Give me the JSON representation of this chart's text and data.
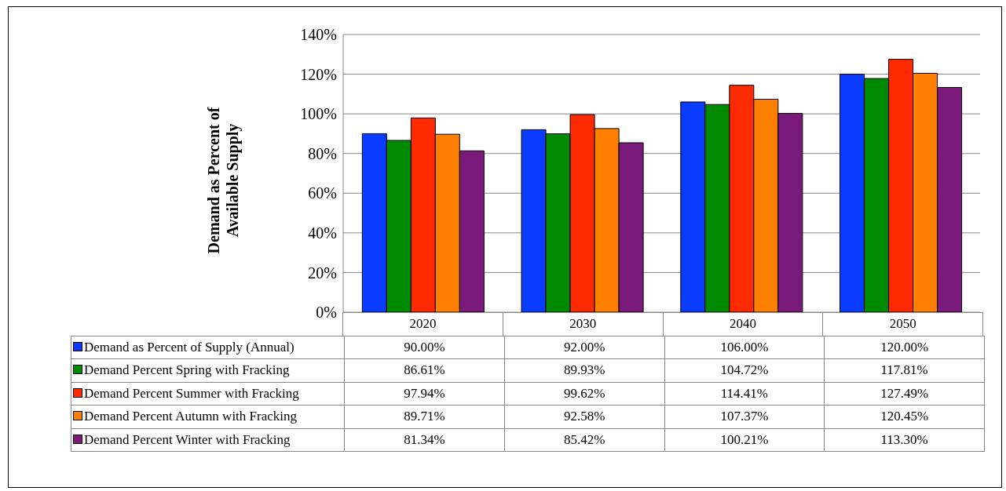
{
  "chart_data": {
    "type": "bar",
    "ylabel": "Demand as Percent of Available Supply",
    "categories": [
      "2020",
      "2030",
      "2040",
      "2050"
    ],
    "series": [
      {
        "name": "Demand as Percent of Supply (Annual)",
        "color": "#0a3cff",
        "values": [
          90,
          92,
          106,
          120
        ],
        "value_labels": [
          "90.00%",
          "92.00%",
          "106.00%",
          "120.00%"
        ]
      },
      {
        "name": "Demand Percent Spring with Fracking",
        "color": "#008a00",
        "values": [
          86.61,
          89.93,
          104.72,
          117.81
        ],
        "value_labels": [
          "86.61%",
          "89.93%",
          "104.72%",
          "117.81%"
        ]
      },
      {
        "name": "Demand Percent Summer with Fracking",
        "color": "#ff2a00",
        "values": [
          97.94,
          99.62,
          114.41,
          127.49
        ],
        "value_labels": [
          "97.94%",
          "99.62%",
          "114.41%",
          "127.49%"
        ]
      },
      {
        "name": "Demand Percent Autumn with Fracking",
        "color": "#ff7f00",
        "values": [
          89.71,
          92.58,
          107.37,
          120.45
        ],
        "value_labels": [
          "89.71%",
          "92.58%",
          "107.37%",
          "120.45%"
        ]
      },
      {
        "name": "Demand Percent Winter with Fracking",
        "color": "#7a1a7a",
        "values": [
          81.34,
          85.42,
          100.21,
          113.3
        ],
        "value_labels": [
          "81.34%",
          "85.42%",
          "100.21%",
          "113.30%"
        ]
      }
    ],
    "ylim": [
      0,
      140
    ],
    "yticks": [
      {
        "value": 0,
        "label": "0%"
      },
      {
        "value": 20,
        "label": "20%"
      },
      {
        "value": 40,
        "label": "40%"
      },
      {
        "value": 60,
        "label": "60%"
      },
      {
        "value": 80,
        "label": "80%"
      },
      {
        "value": 100,
        "label": "100%"
      },
      {
        "value": 120,
        "label": "120%"
      },
      {
        "value": 140,
        "label": "140%"
      }
    ],
    "grid": "y",
    "legend": "bottom"
  }
}
